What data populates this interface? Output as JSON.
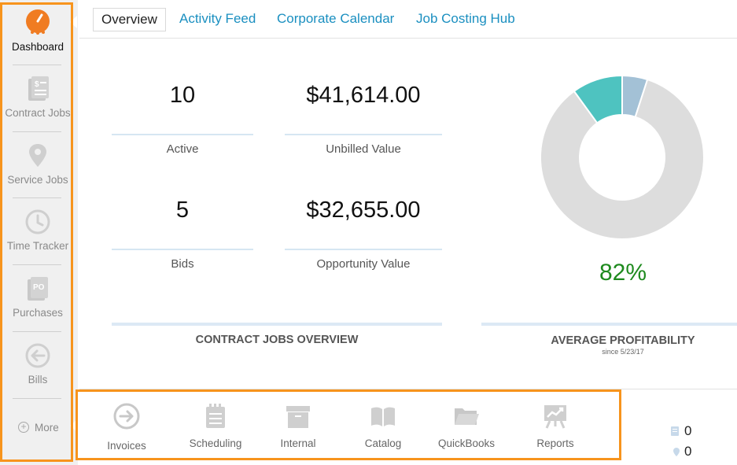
{
  "sidebar": {
    "items": [
      {
        "label": "Dashboard",
        "icon": "speedometer-icon"
      },
      {
        "label": "Contract Jobs",
        "icon": "invoice-document-icon"
      },
      {
        "label": "Service Jobs",
        "icon": "location-pin-icon"
      },
      {
        "label": "Time Tracker",
        "icon": "clock-icon"
      },
      {
        "label": "Purchases",
        "icon": "purchase-order-icon"
      },
      {
        "label": "Bills",
        "icon": "arrow-left-circle-icon"
      }
    ],
    "more_label": "More"
  },
  "tabs": [
    {
      "label": "Overview",
      "active": true
    },
    {
      "label": "Activity Feed",
      "active": false
    },
    {
      "label": "Corporate Calendar",
      "active": false
    },
    {
      "label": "Job Costing Hub",
      "active": false
    }
  ],
  "contract_jobs": {
    "active_value": "10",
    "active_label": "Active",
    "unbilled_value": "$41,614.00",
    "unbilled_label": "Unbilled Value",
    "bids_value": "5",
    "bids_label": "Bids",
    "opportunity_value": "$32,655.00",
    "opportunity_label": "Opportunity Value",
    "section_title": "CONTRACT JOBS OVERVIEW"
  },
  "profitability": {
    "percent": "82%",
    "section_title": "AVERAGE PROFITABILITY",
    "since": "since 5/23/17"
  },
  "chart_data": {
    "type": "pie",
    "donut": true,
    "slices": [
      {
        "value": 5,
        "color": "#a3c1d6"
      },
      {
        "value": 85,
        "color": "#dddddd"
      },
      {
        "value": 10,
        "color": "#4ec3c0"
      }
    ]
  },
  "bottom_bar": {
    "items": [
      {
        "label": "Invoices",
        "icon": "arrow-right-circle-icon"
      },
      {
        "label": "Scheduling",
        "icon": "notepad-icon"
      },
      {
        "label": "Internal",
        "icon": "archive-box-icon"
      },
      {
        "label": "Catalog",
        "icon": "open-book-icon"
      },
      {
        "label": "QuickBooks",
        "icon": "folder-icon"
      },
      {
        "label": "Reports",
        "icon": "presentation-chart-icon"
      }
    ]
  },
  "counters": {
    "documents": "0",
    "locations": "0"
  },
  "colors": {
    "accent_orange": "#f7941d",
    "link_blue": "#1a8fc0",
    "profit_green": "#1e8a1e"
  }
}
